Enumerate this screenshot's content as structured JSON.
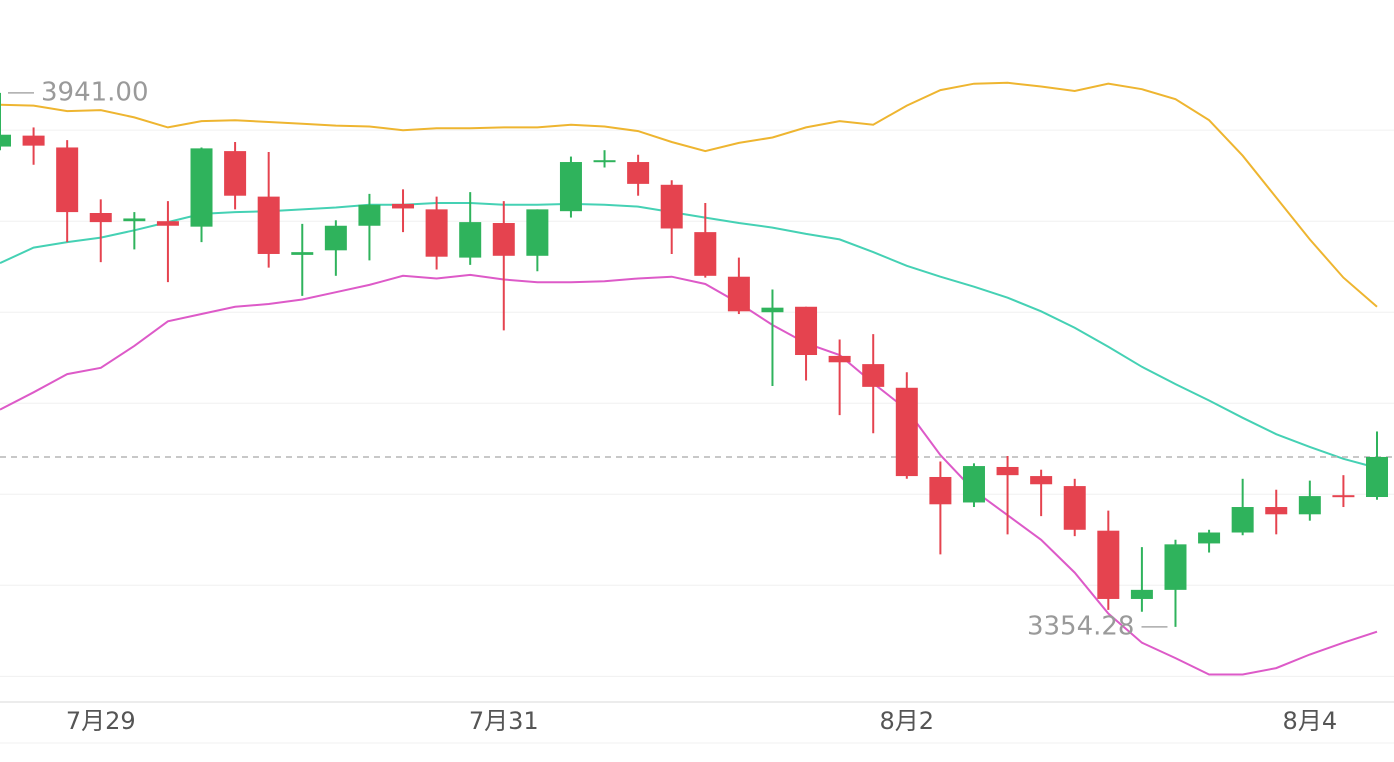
{
  "chart_data": {
    "type": "candlestick",
    "categories": [
      null,
      null,
      null,
      "7月29",
      null,
      null,
      null,
      null,
      null,
      null,
      null,
      null,
      null,
      null,
      null,
      "7月31",
      null,
      null,
      null,
      null,
      null,
      null,
      null,
      null,
      null,
      null,
      null,
      "8月2",
      null,
      null,
      null,
      null,
      null,
      null,
      null,
      null,
      null,
      null,
      null,
      "8月4",
      null,
      null
    ],
    "open": [
      3882,
      3894,
      3881,
      3809,
      3800,
      3800,
      3794,
      3877,
      3827,
      3763,
      3768,
      3795,
      3819,
      3813,
      3760,
      3798,
      3762,
      3811,
      3865,
      3865,
      3840,
      3788,
      3739,
      3700,
      3706,
      3652,
      3643,
      3617,
      3519,
      3491,
      3530,
      3520,
      3509,
      3460,
      3385,
      3395,
      3446,
      3458,
      3486,
      3478,
      3499,
      3497
    ],
    "high": [
      3941,
      3903,
      3889,
      3824,
      3810,
      3822,
      3881,
      3887,
      3876,
      3797,
      3801,
      3830,
      3835,
      3827,
      3832,
      3822,
      3813,
      3871,
      3878,
      3873,
      3845,
      3820,
      3760,
      3725,
      3706,
      3670,
      3676,
      3634,
      3536,
      3534,
      3542,
      3527,
      3517,
      3482,
      3442,
      3450,
      3461,
      3517,
      3505,
      3515,
      3521,
      3569
    ],
    "low": [
      3878,
      3862,
      3777,
      3755,
      3769,
      3733,
      3777,
      3813,
      3749,
      3718,
      3740,
      3757,
      3788,
      3747,
      3752,
      3680,
      3745,
      3804,
      3859,
      3828,
      3764,
      3738,
      3698,
      3619,
      3625,
      3587,
      3567,
      3517,
      3434,
      3486,
      3456,
      3476,
      3454,
      3373,
      3371,
      3354.28,
      3436,
      3455,
      3456,
      3471,
      3486,
      3494
    ],
    "close": [
      3895,
      3883,
      3810,
      3799,
      3803,
      3795,
      3880,
      3828,
      3764,
      3766,
      3795,
      3818,
      3814,
      3761,
      3799,
      3762,
      3813,
      3865,
      3867,
      3841,
      3792,
      3740,
      3701,
      3705,
      3653,
      3645,
      3618,
      3520,
      3489,
      3531,
      3521,
      3511,
      3461,
      3385,
      3395,
      3445,
      3458,
      3486,
      3478,
      3498,
      3497,
      3541
    ],
    "up_color": "#2fb35c",
    "down_color": "#e5434f",
    "bands": [
      {
        "color": "#eeb530",
        "values": [
          3928,
          3927,
          3921,
          3922,
          3914,
          3903,
          3910,
          3911,
          3909,
          3907,
          3905,
          3904,
          3900,
          3902,
          3902,
          3903,
          3903,
          3906,
          3904,
          3899,
          3887,
          3877,
          3886,
          3892,
          3903,
          3910,
          3906,
          3927,
          3944,
          3951,
          3952,
          3948,
          3943,
          3951,
          3945,
          3934,
          3911,
          3872,
          3826,
          3780,
          3738,
          3706
        ]
      },
      {
        "color": "#45d1b4",
        "values": [
          3754,
          3771,
          3777,
          3782,
          3790,
          3799,
          3808,
          3810,
          3811,
          3813,
          3815,
          3818,
          3818,
          3820,
          3820,
          3818,
          3818,
          3819,
          3818,
          3816,
          3810,
          3804,
          3798,
          3793,
          3786,
          3780,
          3766,
          3751,
          3739,
          3728,
          3716,
          3701,
          3683,
          3662,
          3640,
          3621,
          3603,
          3584,
          3566,
          3552,
          3539,
          3529
        ]
      },
      {
        "color": "#dd5ac8",
        "values": [
          3593,
          3612,
          3632,
          3639,
          3663,
          3690,
          3698,
          3706,
          3709,
          3714,
          3722,
          3730,
          3740,
          3737,
          3741,
          3736,
          3733,
          3733,
          3734,
          3737,
          3739,
          3731,
          3710,
          3686,
          3666,
          3653,
          3622,
          3593,
          3543,
          3504,
          3477,
          3450,
          3414,
          3369,
          3337,
          3320,
          3302,
          3302,
          3309,
          3324,
          3337,
          3349
        ]
      }
    ],
    "current_price": 3541,
    "annotations": [
      {
        "value": 3941,
        "label": "3941.00"
      },
      {
        "value": 3354.28,
        "label": "3354.28"
      }
    ],
    "ylim": [
      3274,
      4043
    ],
    "grid_lines": [
      3300,
      3400,
      3500,
      3600,
      3700,
      3800,
      3900
    ]
  }
}
